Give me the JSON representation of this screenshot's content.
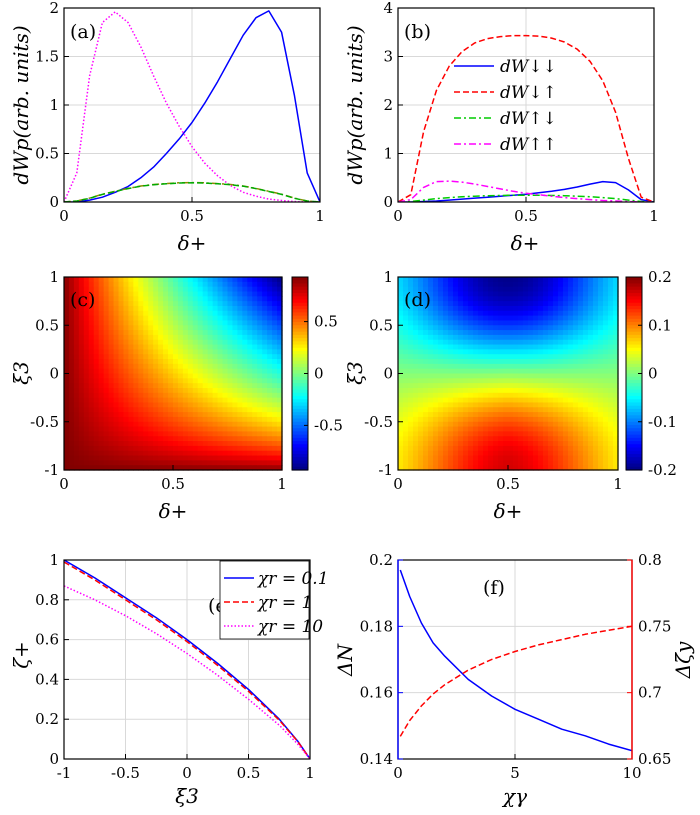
{
  "chart_data": [
    {
      "type": "line",
      "panel_label": "(a)",
      "xlabel": "δ+",
      "ylabel": "dWp(arb. units)",
      "xlim": [
        0,
        1
      ],
      "ylim": [
        0,
        2
      ],
      "xticks": [
        "0",
        "0.5",
        "1"
      ],
      "yticks": [
        "0",
        "0.5",
        "1",
        "1.5",
        "2"
      ],
      "grid": true,
      "x": [
        0,
        0.05,
        0.1,
        0.15,
        0.2,
        0.25,
        0.3,
        0.35,
        0.4,
        0.45,
        0.5,
        0.55,
        0.6,
        0.65,
        0.7,
        0.75,
        0.8,
        0.85,
        0.9,
        0.95,
        1
      ],
      "series": [
        {
          "color": "#0000ff",
          "dash": "solid",
          "values": [
            0,
            0,
            0.02,
            0.05,
            0.1,
            0.16,
            0.25,
            0.36,
            0.5,
            0.65,
            0.82,
            1.02,
            1.24,
            1.48,
            1.72,
            1.9,
            1.97,
            1.75,
            1.1,
            0.3,
            0
          ]
        },
        {
          "color": "#ff00ff",
          "dash": "dotted",
          "values": [
            0,
            0.3,
            1.3,
            1.85,
            1.96,
            1.85,
            1.6,
            1.3,
            1.02,
            0.78,
            0.57,
            0.4,
            0.27,
            0.17,
            0.1,
            0.06,
            0.03,
            0.015,
            0.005,
            0,
            0
          ]
        },
        {
          "color": "#8b8b00",
          "dash": "dashdot",
          "values": [
            0,
            0.01,
            0.04,
            0.08,
            0.11,
            0.14,
            0.165,
            0.18,
            0.19,
            0.198,
            0.2,
            0.198,
            0.19,
            0.18,
            0.165,
            0.14,
            0.11,
            0.08,
            0.04,
            0.01,
            0
          ]
        },
        {
          "color": "#00aa00",
          "dash": "dashed",
          "values": [
            0,
            0.01,
            0.038,
            0.078,
            0.108,
            0.138,
            0.163,
            0.178,
            0.188,
            0.196,
            0.198,
            0.196,
            0.188,
            0.178,
            0.163,
            0.138,
            0.108,
            0.078,
            0.038,
            0.01,
            0
          ]
        }
      ]
    },
    {
      "type": "line",
      "panel_label": "(b)",
      "xlabel": "δ+",
      "ylabel": "dWp(arb. units)",
      "xlim": [
        0,
        1
      ],
      "ylim": [
        0,
        4
      ],
      "xticks": [
        "0",
        "0.5",
        "1"
      ],
      "yticks": [
        "0",
        "1",
        "2",
        "3",
        "4"
      ],
      "grid": true,
      "legend_position": "center",
      "x": [
        0,
        0.05,
        0.1,
        0.15,
        0.2,
        0.25,
        0.3,
        0.35,
        0.4,
        0.45,
        0.5,
        0.55,
        0.6,
        0.65,
        0.7,
        0.75,
        0.8,
        0.85,
        0.9,
        0.95,
        1
      ],
      "series": [
        {
          "name": "dW↓↓",
          "color": "#0000ff",
          "dash": "solid",
          "values": [
            0,
            0,
            0.01,
            0.02,
            0.04,
            0.06,
            0.08,
            0.1,
            0.12,
            0.14,
            0.16,
            0.19,
            0.22,
            0.26,
            0.31,
            0.37,
            0.42,
            0.4,
            0.25,
            0.05,
            0
          ]
        },
        {
          "name": "dW↓↑",
          "color": "#ff0000",
          "dash": "dashed",
          "values": [
            0,
            0.15,
            1.45,
            2.3,
            2.8,
            3.1,
            3.28,
            3.37,
            3.41,
            3.43,
            3.43,
            3.42,
            3.38,
            3.3,
            3.15,
            2.9,
            2.5,
            1.85,
            0.9,
            0.1,
            0
          ]
        },
        {
          "name": "dW↑↓",
          "color": "#00cc00",
          "dash": "dashdot",
          "values": [
            0,
            0.01,
            0.04,
            0.07,
            0.09,
            0.11,
            0.12,
            0.13,
            0.135,
            0.14,
            0.14,
            0.14,
            0.135,
            0.13,
            0.12,
            0.11,
            0.09,
            0.07,
            0.04,
            0.01,
            0
          ]
        },
        {
          "name": "dW↑↑",
          "color": "#ff00ff",
          "dash": "dashdot",
          "values": [
            0,
            0.05,
            0.3,
            0.42,
            0.43,
            0.41,
            0.37,
            0.32,
            0.27,
            0.22,
            0.18,
            0.15,
            0.12,
            0.09,
            0.07,
            0.05,
            0.03,
            0.02,
            0.01,
            0,
            0
          ]
        }
      ]
    },
    {
      "type": "heatmap",
      "panel_label": "(c)",
      "xlabel": "δ+",
      "ylabel": "ξ3",
      "xlim": [
        0,
        1
      ],
      "ylim": [
        -1,
        1
      ],
      "xticks": [
        "0",
        "0.5",
        "1"
      ],
      "yticks": [
        "-1",
        "-0.5",
        "0",
        "0.5",
        "1"
      ],
      "colorbar_ticks": [
        "0.5",
        "0",
        "-0.5"
      ],
      "colorbar_range": [
        -0.93,
        0.93
      ],
      "colormap": "jet",
      "description_values": {
        "max_region": "left and bottom",
        "min_region": "top-right corner"
      }
    },
    {
      "type": "heatmap",
      "panel_label": "(d)",
      "xlabel": "δ+",
      "ylabel": "ξ3",
      "xlim": [
        0,
        1
      ],
      "ylim": [
        -1,
        1
      ],
      "xticks": [
        "0",
        "0.5",
        "1"
      ],
      "yticks": [
        "-1",
        "-0.5",
        "0",
        "0.5",
        "1"
      ],
      "colorbar_ticks": [
        "0.2",
        "0.1",
        "0",
        "-0.1",
        "-0.2"
      ],
      "colorbar_range": [
        -0.2,
        0.2
      ],
      "colormap": "jet",
      "description_values": {
        "max_region": "bottom center",
        "min_region": "top center"
      }
    },
    {
      "type": "line",
      "panel_label": "(e)",
      "xlabel": "ξ3",
      "ylabel": "ζ+",
      "xlim": [
        -1,
        1
      ],
      "ylim": [
        0,
        1
      ],
      "xticks": [
        "-1",
        "-0.5",
        "0",
        "0.5",
        "1"
      ],
      "yticks": [
        "0",
        "0.2",
        "0.4",
        "0.6",
        "0.8",
        "1"
      ],
      "grid": true,
      "legend_position": "top-right",
      "x": [
        -1,
        -0.75,
        -0.5,
        -0.25,
        0,
        0.25,
        0.5,
        0.75,
        0.9,
        1
      ],
      "series": [
        {
          "name": "χr = 0.1",
          "color": "#0000ff",
          "dash": "solid",
          "values": [
            1,
            0.91,
            0.81,
            0.71,
            0.6,
            0.48,
            0.35,
            0.2,
            0.09,
            0
          ]
        },
        {
          "name": "χr = 1",
          "color": "#ff0000",
          "dash": "dashed",
          "values": [
            0.99,
            0.9,
            0.8,
            0.7,
            0.59,
            0.47,
            0.34,
            0.195,
            0.088,
            0
          ]
        },
        {
          "name": "χr = 10",
          "color": "#ff00ff",
          "dash": "dotted",
          "values": [
            0.87,
            0.8,
            0.72,
            0.63,
            0.53,
            0.42,
            0.3,
            0.17,
            0.075,
            0
          ]
        }
      ]
    },
    {
      "type": "line",
      "panel_label": "(f)",
      "xlabel": "χγ",
      "ylabel_left": "ΔN",
      "ylabel_right": "Δζ̄y",
      "xlim": [
        0,
        10
      ],
      "ylim_left": [
        0.14,
        0.2
      ],
      "ylim_right": [
        0.65,
        0.8
      ],
      "xticks": [
        "0",
        "5",
        "10"
      ],
      "yticks_left": [
        "0.14",
        "0.16",
        "0.18",
        "0.2"
      ],
      "yticks_right": [
        "0.65",
        "0.7",
        "0.75",
        "0.8"
      ],
      "grid": true,
      "x": [
        0.1,
        0.5,
        1,
        1.5,
        2,
        3,
        4,
        5,
        6,
        7,
        8,
        9,
        10
      ],
      "series": [
        {
          "axis": "left",
          "color": "#0000ff",
          "dash": "solid",
          "values": [
            0.197,
            0.189,
            0.181,
            0.175,
            0.171,
            0.164,
            0.159,
            0.155,
            0.152,
            0.149,
            0.147,
            0.1445,
            0.1425
          ]
        },
        {
          "axis": "right",
          "color": "#ff0000",
          "dash": "dashed",
          "values": [
            0.667,
            0.679,
            0.69,
            0.699,
            0.706,
            0.717,
            0.725,
            0.731,
            0.736,
            0.74,
            0.744,
            0.747,
            0.75
          ]
        }
      ]
    }
  ]
}
